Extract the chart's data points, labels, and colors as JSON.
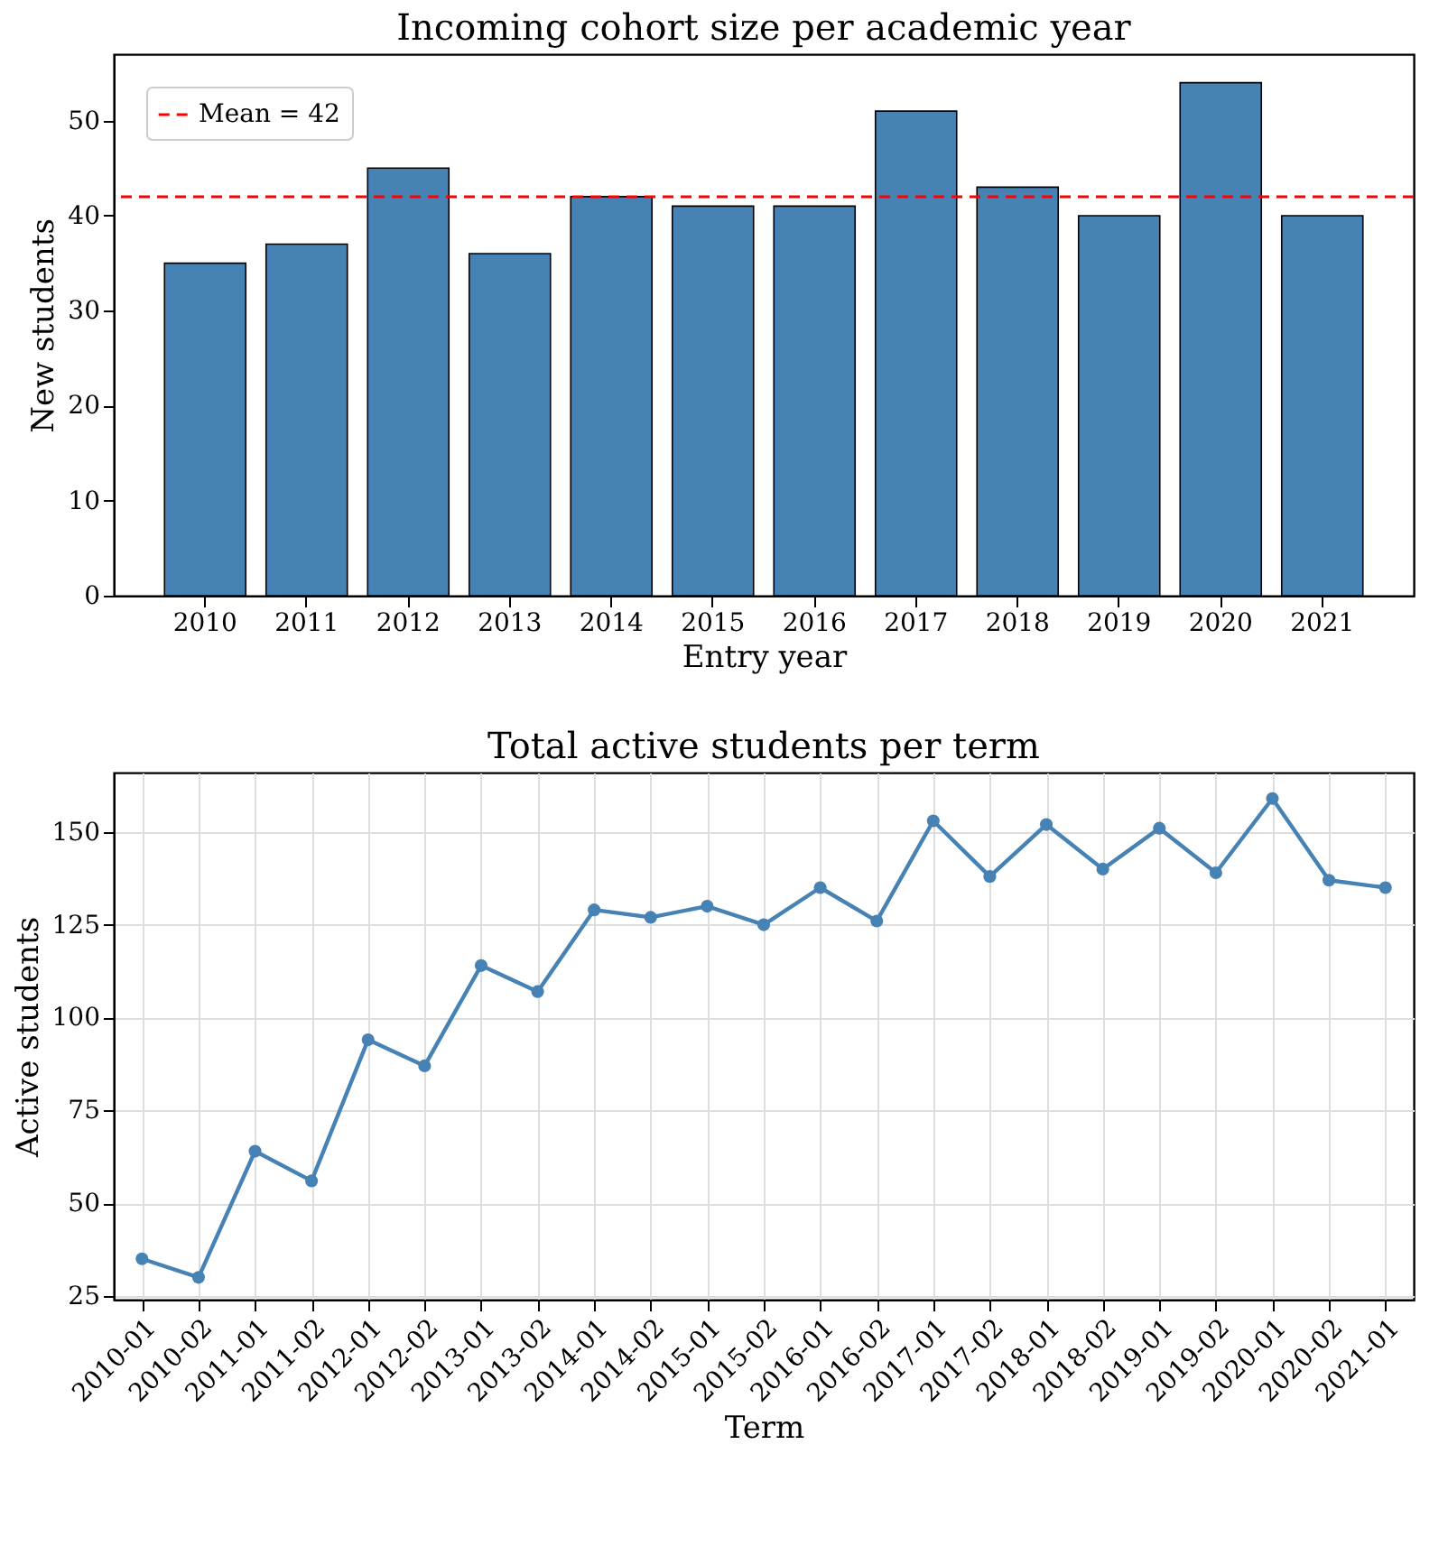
{
  "chart_data": [
    {
      "type": "bar",
      "title": "Incoming cohort size per academic year",
      "xlabel": "Entry year",
      "ylabel": "New students",
      "categories": [
        "2010",
        "2011",
        "2012",
        "2013",
        "2014",
        "2015",
        "2016",
        "2017",
        "2018",
        "2019",
        "2020",
        "2021"
      ],
      "values": [
        35,
        37,
        45,
        36,
        42,
        41,
        41,
        51,
        43,
        40,
        54,
        40
      ],
      "color": "#4682b4",
      "ylim": [
        0,
        57
      ],
      "yticks": [
        0,
        10,
        20,
        30,
        40,
        50
      ],
      "grid": false,
      "legend": "top left",
      "ref_lines": [
        {
          "axis": "y",
          "value": 42,
          "label": "Mean = 42",
          "color": "#ff0000",
          "line_style": "dashed"
        }
      ]
    },
    {
      "type": "line",
      "title": "Total active students per term",
      "xlabel": "Term",
      "ylabel": "Active students",
      "categories": [
        "2010-01",
        "2010-02",
        "2011-01",
        "2011-02",
        "2012-01",
        "2012-02",
        "2013-01",
        "2013-02",
        "2014-01",
        "2014-02",
        "2015-01",
        "2015-02",
        "2016-01",
        "2016-02",
        "2017-01",
        "2017-02",
        "2018-01",
        "2018-02",
        "2019-01",
        "2019-02",
        "2020-01",
        "2020-02",
        "2021-01"
      ],
      "values": [
        35,
        30,
        64,
        56,
        94,
        87,
        114,
        107,
        129,
        127,
        130,
        125,
        135,
        126,
        153,
        138,
        152,
        140,
        151,
        139,
        159,
        137,
        135
      ],
      "color": "#4682b4",
      "ylim": [
        24,
        166
      ],
      "yticks": [
        25,
        50,
        75,
        100,
        125,
        150
      ],
      "grid": true,
      "marker": "circle",
      "line_style": "solid"
    }
  ]
}
